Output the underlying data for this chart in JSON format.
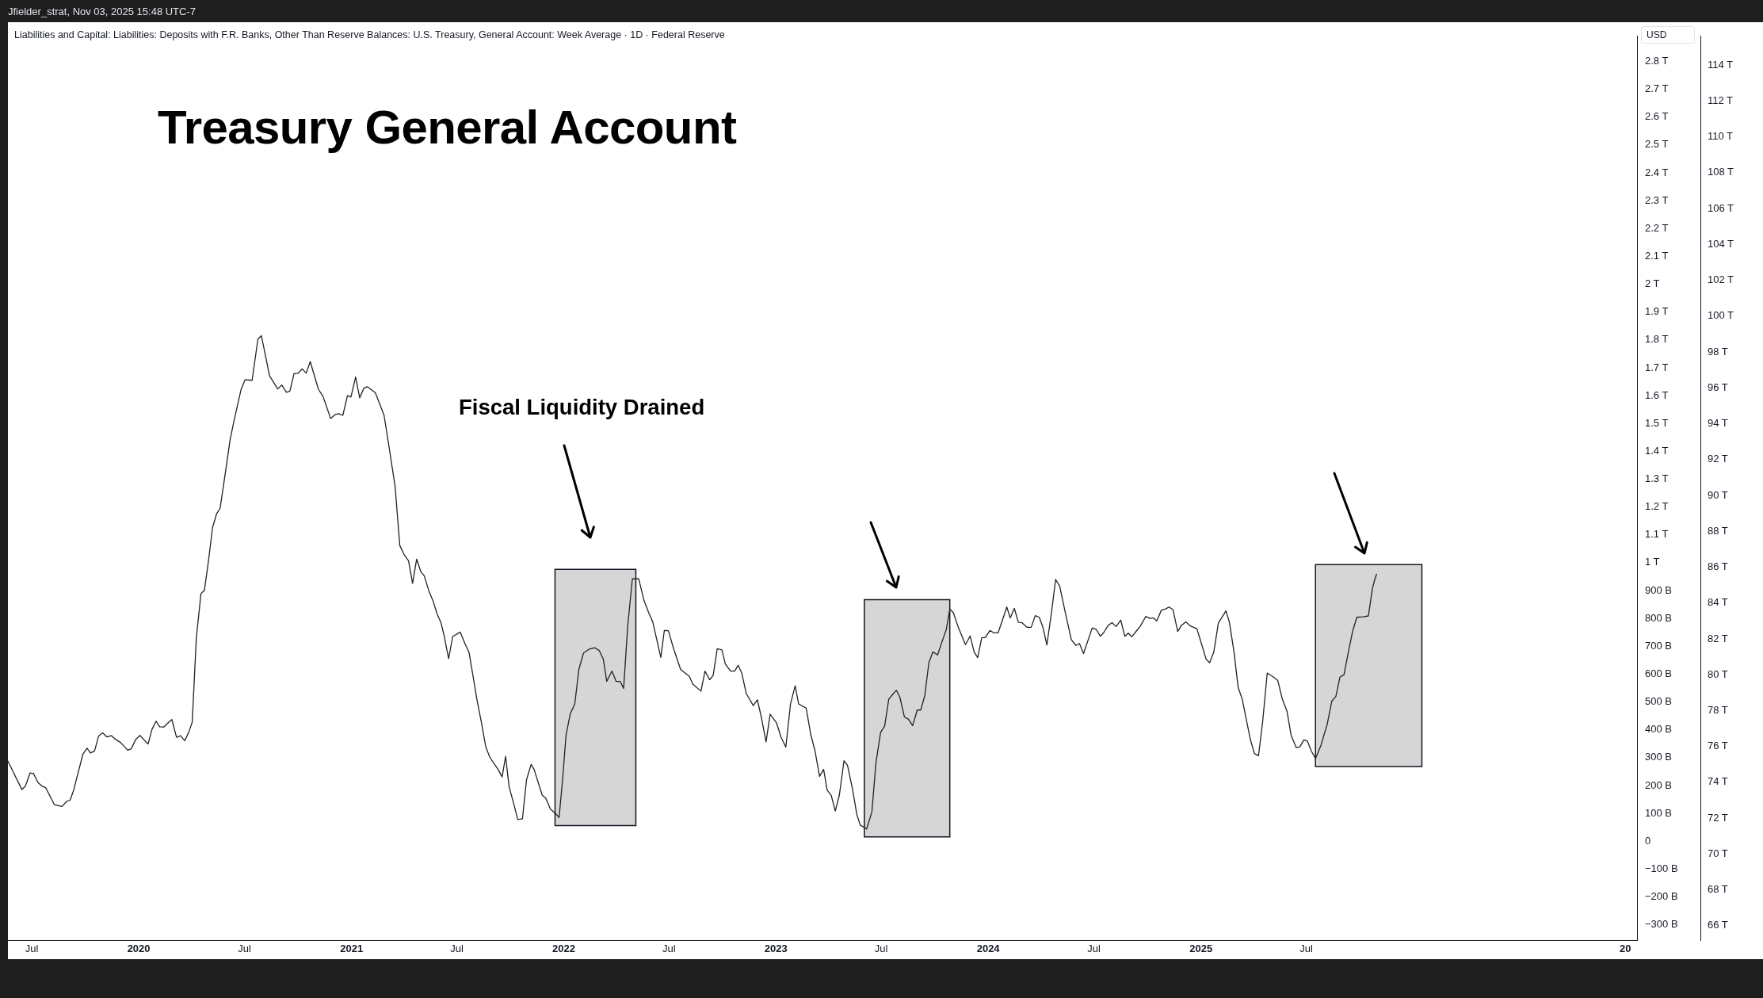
{
  "chart_data": {
    "type": "line",
    "title": "Treasury General Account",
    "subtitle": "Liabilities and Capital: Liabilities: Deposits with F.R. Banks, Other Than Reserve Balances: U.S. Treasury, General Account: Week Average · 1D · Federal Reserve",
    "ylabel": "USD",
    "annotations": [
      "Jfielder_strat, Nov 03, 2025 15:48 UTC-7",
      "Fiscal Liquidity Drained"
    ],
    "x": [
      "2019-05-21",
      "2019-05-31",
      "2019-06-14",
      "2019-06-20",
      "2019-06-28",
      "2019-07-04",
      "2019-07-12",
      "2019-07-19",
      "2019-07-25",
      "2019-08-09",
      "2019-08-22",
      "2019-08-30",
      "2019-09-05",
      "2019-09-11",
      "2019-09-27",
      "2019-10-04",
      "2019-10-10",
      "2019-10-17",
      "2019-10-24",
      "2019-10-31",
      "2019-11-07",
      "2019-11-15",
      "2019-11-22",
      "2019-12-01",
      "2019-12-13",
      "2019-12-19",
      "2019-12-27",
      "2020-01-03",
      "2020-01-17",
      "2020-01-24",
      "2020-01-31",
      "2020-02-06",
      "2020-02-13",
      "2020-02-20",
      "2020-02-27",
      "2020-03-06",
      "2020-03-13",
      "2020-03-20",
      "2020-03-27",
      "2020-04-02",
      "2020-04-09",
      "2020-04-17",
      "2020-04-23",
      "2020-04-30",
      "2020-05-07",
      "2020-05-14",
      "2020-05-20",
      "2020-05-29",
      "2020-06-06",
      "2020-06-13",
      "2020-06-25",
      "2020-07-02",
      "2020-07-14",
      "2020-07-24",
      "2020-07-30",
      "2020-08-13",
      "2020-08-27",
      "2020-09-03",
      "2020-09-11",
      "2020-09-17",
      "2020-09-24",
      "2020-10-01",
      "2020-10-08",
      "2020-10-15",
      "2020-10-22",
      "2020-11-05",
      "2020-11-13",
      "2020-11-26",
      "2020-12-04",
      "2020-12-10",
      "2020-12-17",
      "2020-12-25",
      "2020-12-31",
      "2021-01-08",
      "2021-01-15",
      "2021-01-22",
      "2021-01-28",
      "2021-02-11",
      "2021-02-26",
      "2021-03-07",
      "2021-03-17",
      "2021-03-25",
      "2021-04-02",
      "2021-04-09",
      "2021-04-16",
      "2021-04-23",
      "2021-04-30",
      "2021-05-06",
      "2021-05-14",
      "2021-05-21",
      "2021-05-28",
      "2021-06-04",
      "2021-06-09",
      "2021-06-17",
      "2021-06-24",
      "2021-07-07",
      "2021-07-15",
      "2021-07-22",
      "2021-07-28",
      "2021-08-05",
      "2021-08-12",
      "2021-08-20",
      "2021-08-27",
      "2021-09-10",
      "2021-09-17",
      "2021-09-23",
      "2021-09-29",
      "2021-10-07",
      "2021-10-14",
      "2021-10-22",
      "2021-10-29",
      "2021-11-06",
      "2021-11-11",
      "2021-11-25",
      "2021-12-01",
      "2021-12-09",
      "2021-12-19",
      "2021-12-24",
      "2021-12-30",
      "2022-01-05",
      "2022-01-12",
      "2022-01-20",
      "2022-01-27",
      "2022-02-04",
      "2022-02-13",
      "2022-02-23",
      "2022-03-03",
      "2022-03-10",
      "2022-03-16",
      "2022-03-25",
      "2022-04-01",
      "2022-04-08",
      "2022-04-14",
      "2022-04-21",
      "2022-04-29",
      "2022-05-10",
      "2022-05-19",
      "2022-05-27",
      "2022-06-03",
      "2022-06-17",
      "2022-06-23",
      "2022-06-30",
      "2022-07-09",
      "2022-07-21",
      "2022-08-05",
      "2022-08-11",
      "2022-08-25",
      "2022-09-01",
      "2022-09-09",
      "2022-09-15",
      "2022-09-22",
      "2022-09-30",
      "2022-10-06",
      "2022-10-15",
      "2022-10-22",
      "2022-10-28",
      "2022-11-03",
      "2022-11-11",
      "2022-11-23",
      "2022-11-30",
      "2022-12-07",
      "2022-12-15",
      "2022-12-22",
      "2023-01-02",
      "2023-01-10",
      "2023-01-18",
      "2023-01-26",
      "2023-02-03",
      "2023-02-09",
      "2023-02-22",
      "2023-03-02",
      "2023-03-09",
      "2023-03-17",
      "2023-03-24",
      "2023-03-30",
      "2023-04-06",
      "2023-04-13",
      "2023-04-20",
      "2023-04-28",
      "2023-05-04",
      "2023-05-13",
      "2023-05-20",
      "2023-05-26",
      "2023-06-06",
      "2023-06-15",
      "2023-06-22",
      "2023-06-30",
      "2023-07-07",
      "2023-07-14",
      "2023-07-21",
      "2023-07-27",
      "2023-08-02",
      "2023-08-10",
      "2023-08-17",
      "2023-08-24",
      "2023-09-01",
      "2023-09-07",
      "2023-09-14",
      "2023-09-21",
      "2023-09-28",
      "2023-10-06",
      "2023-10-14",
      "2023-10-21",
      "2023-10-27",
      "2023-11-02",
      "2023-11-11",
      "2023-11-23",
      "2023-12-01",
      "2023-12-08",
      "2023-12-14",
      "2023-12-21",
      "2023-12-27",
      "2024-01-04",
      "2024-01-11",
      "2024-01-18",
      "2024-01-26",
      "2024-02-02",
      "2024-02-08",
      "2024-02-15",
      "2024-02-22",
      "2024-02-28",
      "2024-03-08",
      "2024-03-15",
      "2024-03-22",
      "2024-03-29",
      "2024-04-04",
      "2024-04-11",
      "2024-04-19",
      "2024-04-26",
      "2024-05-03",
      "2024-05-13",
      "2024-05-23",
      "2024-05-31",
      "2024-06-06",
      "2024-06-13",
      "2024-06-28",
      "2024-07-05",
      "2024-07-12",
      "2024-07-18",
      "2024-07-25",
      "2024-08-01",
      "2024-08-08",
      "2024-08-16",
      "2024-08-23",
      "2024-08-29",
      "2024-09-04",
      "2024-09-12",
      "2024-09-19",
      "2024-09-28",
      "2024-10-05",
      "2024-10-11",
      "2024-10-17",
      "2024-10-25",
      "2024-10-31",
      "2024-11-07",
      "2024-11-14",
      "2024-11-22",
      "2024-11-28",
      "2024-12-06",
      "2024-12-13",
      "2024-12-25",
      "2025-01-02",
      "2025-01-10",
      "2025-01-16",
      "2025-01-23",
      "2025-01-31",
      "2025-02-13",
      "2025-02-19",
      "2025-02-27",
      "2025-03-06",
      "2025-03-13",
      "2025-03-27",
      "2025-04-03",
      "2025-04-10",
      "2025-04-17",
      "2025-04-25",
      "2025-05-04",
      "2025-05-13",
      "2025-05-21",
      "2025-05-29",
      "2025-06-05",
      "2025-06-14",
      "2025-06-20",
      "2025-06-27",
      "2025-07-03",
      "2025-07-10",
      "2025-07-17",
      "2025-07-26",
      "2025-08-06",
      "2025-08-14",
      "2025-08-21",
      "2025-08-28",
      "2025-09-04",
      "2025-09-12",
      "2025-09-19",
      "2025-09-26",
      "2025-10-07",
      "2025-10-16",
      "2025-10-23",
      "2025-10-27",
      "2025-10-30"
    ],
    "series": [
      {
        "color": "#222222",
        "values": [
          288000000000.0,
          245000000000.0,
          186000000000.0,
          198000000000.0,
          245000000000.0,
          243000000000.0,
          210000000000.0,
          198000000000.0,
          192000000000.0,
          131000000000.0,
          125000000000.0,
          143000000000.0,
          148000000000.0,
          183000000000.0,
          313000000000.0,
          334000000000.0,
          317000000000.0,
          324000000000.0,
          378000000000.0,
          389000000000.0,
          375000000000.0,
          379000000000.0,
          366000000000.0,
          354000000000.0,
          327000000000.0,
          332000000000.0,
          366000000000.0,
          380000000000.0,
          349000000000.0,
          403000000000.0,
          431000000000.0,
          411000000000.0,
          410000000000.0,
          424000000000.0,
          437000000000.0,
          373000000000.0,
          379000000000.0,
          361000000000.0,
          391000000000.0,
          428000000000.0,
          728000000000.0,
          889000000000.0,
          901000000000.0,
          1007000000000.0,
          1127000000000.0,
          1176000000000.0,
          1196000000000.0,
          1323000000000.0,
          1440000000000.0,
          1511000000000.0,
          1622000000000.0,
          1657000000000.0,
          1655000000000.0,
          1803000000000.0,
          1815000000000.0,
          1671000000000.0,
          1624000000000.0,
          1638000000000.0,
          1612000000000.0,
          1616000000000.0,
          1679000000000.0,
          1680000000000.0,
          1696000000000.0,
          1681000000000.0,
          1722000000000.0,
          1623000000000.0,
          1597000000000.0,
          1518000000000.0,
          1532000000000.0,
          1535000000000.0,
          1529000000000.0,
          1600000000000.0,
          1595000000000.0,
          1667000000000.0,
          1592000000000.0,
          1626000000000.0,
          1632000000000.0,
          1610000000000.0,
          1529000000000.0,
          1409000000000.0,
          1273000000000.0,
          1062000000000.0,
          1027000000000.0,
          1007000000000.0,
          926000000000.0,
          1013000000000.0,
          969000000000.0,
          953000000000.0,
          899000000000.0,
          864000000000.0,
          817000000000.0,
          784000000000.0,
          740000000000.0,
          656000000000.0,
          735000000000.0,
          751000000000.0,
          710000000000.0,
          679000000000.0,
          605000000000.0,
          505000000000.0,
          431000000000.0,
          338000000000.0,
          301000000000.0,
          258000000000.0,
          231000000000.0,
          305000000000.0,
          196000000000.0,
          134000000000.0,
          78000000000.0,
          81000000000.0,
          221000000000.0,
          276000000000.0,
          258000000000.0,
          165000000000.0,
          155000000000.0,
          116000000000.0,
          97000000000.0,
          85000000000.0,
          221000000000.0,
          382000000000.0,
          456000000000.0,
          493000000000.0,
          617000000000.0,
          676000000000.0,
          689000000000.0,
          695000000000.0,
          685000000000.0,
          654000000000.0,
          574000000000.0,
          611000000000.0,
          574000000000.0,
          574000000000.0,
          549000000000.0,
          772000000000.0,
          942000000000.0,
          942000000000.0,
          865000000000.0,
          821000000000.0,
          788000000000.0,
          660000000000.0,
          757000000000.0,
          756000000000.0,
          691000000000.0,
          617000000000.0,
          592000000000.0,
          564000000000.0,
          539000000000.0,
          611000000000.0,
          580000000000.0,
          595000000000.0,
          691000000000.0,
          687000000000.0,
          636000000000.0,
          611000000000.0,
          611000000000.0,
          632000000000.0,
          605000000000.0,
          530000000000.0,
          487000000000.0,
          508000000000.0,
          444000000000.0,
          357000000000.0,
          456000000000.0,
          425000000000.0,
          372000000000.0,
          338000000000.0,
          493000000000.0,
          558000000000.0,
          493000000000.0,
          478000000000.0,
          382000000000.0,
          326000000000.0,
          233000000000.0,
          258000000000.0,
          184000000000.0,
          165000000000.0,
          109000000000.0,
          165000000000.0,
          289000000000.0,
          273000000000.0,
          184000000000.0,
          97000000000.0,
          58000000000.0,
          44000000000.0,
          105000000000.0,
          282000000000.0,
          391000000000.0,
          414000000000.0,
          510000000000.0,
          528000000000.0,
          542000000000.0,
          518000000000.0,
          446000000000.0,
          438000000000.0,
          415000000000.0,
          471000000000.0,
          471000000000.0,
          523000000000.0,
          641000000000.0,
          680000000000.0,
          669000000000.0,
          719000000000.0,
          760000000000.0,
          833000000000.0,
          821000000000.0,
          766000000000.0,
          706000000000.0,
          737000000000.0,
          679000000000.0,
          659000000000.0,
          731000000000.0,
          731000000000.0,
          757000000000.0,
          748000000000.0,
          748000000000.0,
          797000000000.0,
          841000000000.0,
          802000000000.0,
          836000000000.0,
          786000000000.0,
          785000000000.0,
          768000000000.0,
          768000000000.0,
          810000000000.0,
          804000000000.0,
          769000000000.0,
          705000000000.0,
          823000000000.0,
          940000000000.0,
          916000000000.0,
          818000000000.0,
          724000000000.0,
          703000000000.0,
          710000000000.0,
          674000000000.0,
          766000000000.0,
          760000000000.0,
          736000000000.0,
          750000000000.0,
          774000000000.0,
          785000000000.0,
          771000000000.0,
          794000000000.0,
          736000000000.0,
          747000000000.0,
          734000000000.0,
          755000000000.0,
          773000000000.0,
          807000000000.0,
          800000000000.0,
          802000000000.0,
          791000000000.0,
          830000000000.0,
          833000000000.0,
          841000000000.0,
          831000000000.0,
          753000000000.0,
          774000000000.0,
          788000000000.0,
          774000000000.0,
          763000000000.0,
          708000000000.0,
          653000000000.0,
          641000000000.0,
          679000000000.0,
          784000000000.0,
          827000000000.0,
          786000000000.0,
          677000000000.0,
          552000000000.0,
          510000000000.0,
          365000000000.0,
          315000000000.0,
          307000000000.0,
          427000000000.0,
          604000000000.0,
          592000000000.0,
          578000000000.0,
          510000000000.0,
          467000000000.0,
          381000000000.0,
          336000000000.0,
          339000000000.0,
          364000000000.0,
          360000000000.0,
          323000000000.0,
          297000000000.0,
          342000000000.0,
          419000000000.0,
          503000000000.0,
          520000000000.0,
          589000000000.0,
          598000000000.0,
          684000000000.0,
          755000000000.0,
          804000000000.0,
          806000000000.0,
          809000000000.0,
          909000000000.0,
          940000000000.0,
          959000000000.0
        ]
      }
    ],
    "xlim": [
      "2019-05-21",
      "2027-01-21"
    ],
    "xticks": [
      {
        "value": "2019-07-01",
        "label": "Jul"
      },
      {
        "value": "2020-01-01",
        "label": "2020"
      },
      {
        "value": "2020-07-01",
        "label": "Jul"
      },
      {
        "value": "2021-01-01",
        "label": "2021"
      },
      {
        "value": "2021-07-01",
        "label": "Jul"
      },
      {
        "value": "2022-01-01",
        "label": "2022"
      },
      {
        "value": "2022-07-01",
        "label": "Jul"
      },
      {
        "value": "2023-01-01",
        "label": "2023"
      },
      {
        "value": "2023-07-01",
        "label": "Jul"
      },
      {
        "value": "2024-01-01",
        "label": "2024"
      },
      {
        "value": "2024-07-01",
        "label": "Jul"
      },
      {
        "value": "2025-01-01",
        "label": "2025"
      },
      {
        "value": "2025-07-01",
        "label": "Jul"
      },
      {
        "value": "2027-01-01",
        "label": "20"
      }
    ],
    "ylim": [
      -355000000000.0,
      2890000000000.0
    ],
    "yticks": [
      {
        "value": -300000000000.0,
        "label": "−300 B"
      },
      {
        "value": -200000000000.0,
        "label": "−200 B"
      },
      {
        "value": -100000000000.0,
        "label": "−100 B"
      },
      0,
      {
        "value": 100000000000.0,
        "label": "100 B"
      },
      {
        "value": 200000000000.0,
        "label": "200 B"
      },
      {
        "value": 300000000000.0,
        "label": "300 B"
      },
      {
        "value": 400000000000.0,
        "label": "400 B"
      },
      {
        "value": 500000000000.0,
        "label": "500 B"
      },
      {
        "value": 600000000000.0,
        "label": "600 B"
      },
      {
        "value": 700000000000.0,
        "label": "700 B"
      },
      {
        "value": 800000000000.0,
        "label": "800 B"
      },
      {
        "value": 900000000000.0,
        "label": "900 B"
      },
      {
        "value": 1000000000000.0,
        "label": "1 T"
      },
      {
        "value": 1100000000000.0,
        "label": "1.1 T"
      },
      {
        "value": 1200000000000.0,
        "label": "1.2 T"
      },
      {
        "value": 1300000000000.0,
        "label": "1.3 T"
      },
      {
        "value": 1400000000000.0,
        "label": "1.4 T"
      },
      {
        "value": 1500000000000.0,
        "label": "1.5 T"
      },
      {
        "value": 1600000000000.0,
        "label": "1.6 T"
      },
      {
        "value": 1700000000000.0,
        "label": "1.7 T"
      },
      {
        "value": 1800000000000.0,
        "label": "1.8 T"
      },
      {
        "value": 1900000000000.0,
        "label": "1.9 T"
      },
      {
        "value": 2000000000000.0,
        "label": "2 T"
      },
      {
        "value": 2100000000000.0,
        "label": "2.1 T"
      },
      {
        "value": 2200000000000.0,
        "label": "2.2 T"
      },
      {
        "value": 2300000000000.0,
        "label": "2.3 T"
      },
      {
        "value": 2400000000000.0,
        "label": "2.4 T"
      },
      {
        "value": 2500000000000.0,
        "label": "2.5 T"
      },
      {
        "value": 2600000000000.0,
        "label": "2.6 T"
      },
      {
        "value": 2700000000000.0,
        "label": "2.7 T"
      },
      {
        "value": 2800000000000.0,
        "label": "2.8 T"
      }
    ],
    "y2lim": [
      65200000000000.0,
      115600000000000.0
    ],
    "y2ticks": [
      {
        "value": 66000000000000.0,
        "label": "66 T"
      },
      {
        "value": 68000000000000.0,
        "label": "68 T"
      },
      {
        "value": 70000000000000.0,
        "label": "70 T"
      },
      {
        "value": 72000000000000.0,
        "label": "72 T"
      },
      {
        "value": 74000000000000.0,
        "label": "74 T"
      },
      {
        "value": 76000000000000.0,
        "label": "76 T"
      },
      {
        "value": 78000000000000.0,
        "label": "78 T"
      },
      {
        "value": 80000000000000.0,
        "label": "80 T"
      },
      {
        "value": 82000000000000.0,
        "label": "82 T"
      },
      {
        "value": 84000000000000.0,
        "label": "84 T"
      },
      {
        "value": 86000000000000.0,
        "label": "86 T"
      },
      {
        "value": 88000000000000.0,
        "label": "88 T"
      },
      {
        "value": 90000000000000.0,
        "label": "90 T"
      },
      {
        "value": 92000000000000.0,
        "label": "92 T"
      },
      {
        "value": 94000000000000.0,
        "label": "94 T"
      },
      {
        "value": 96000000000000.0,
        "label": "96 T"
      },
      {
        "value": 98000000000000.0,
        "label": "98 T"
      },
      {
        "value": 100000000000000.0,
        "label": "100 T"
      },
      {
        "value": 102000000000000.0,
        "label": "102 T"
      },
      {
        "value": 104000000000000.0,
        "label": "104 T"
      },
      {
        "value": 106000000000000.0,
        "label": "106 T"
      },
      {
        "value": 108000000000000.0,
        "label": "108 T"
      },
      {
        "value": 110000000000000.0,
        "label": "110 T"
      },
      {
        "value": 112000000000000.0,
        "label": "112 T"
      },
      {
        "value": 114000000000000.0,
        "label": "114 T"
      }
    ],
    "bands": [
      {
        "axis": "x",
        "from": "2021-12-17",
        "to": "2022-05-05",
        "color": "#d6d6d6"
      },
      {
        "axis": "x",
        "from": "2023-06-02",
        "to": "2023-10-27",
        "color": "#d6d6d6"
      },
      {
        "axis": "x",
        "from": "2025-07-17",
        "to": "2026-01-16",
        "color": "#d6d6d6"
      }
    ],
    "grid": false,
    "legend": false,
    "marker": "none",
    "line_style": "solid"
  }
}
